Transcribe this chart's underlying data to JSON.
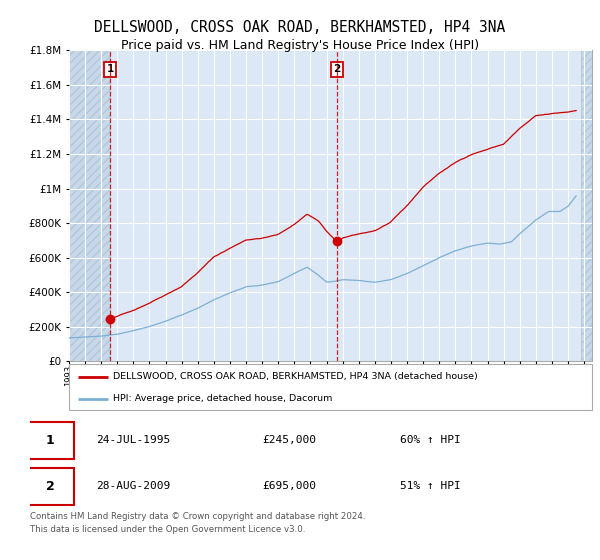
{
  "title": "DELLSWOOD, CROSS OAK ROAD, BERKHAMSTED, HP4 3NA",
  "subtitle": "Price paid vs. HM Land Registry's House Price Index (HPI)",
  "legend_label_red": "DELLSWOOD, CROSS OAK ROAD, BERKHAMSTED, HP4 3NA (detached house)",
  "legend_label_blue": "HPI: Average price, detached house, Dacorum",
  "sale1_date": "24-JUL-1995",
  "sale1_price": "£245,000",
  "sale1_hpi": "60% ↑ HPI",
  "sale1_x": 1995.56,
  "sale1_y": 245000,
  "sale2_date": "28-AUG-2009",
  "sale2_price": "£695,000",
  "sale2_hpi": "51% ↑ HPI",
  "sale2_x": 2009.66,
  "sale2_y": 695000,
  "footer": "Contains HM Land Registry data © Crown copyright and database right 2024.\nThis data is licensed under the Open Government Licence v3.0.",
  "ylim": [
    0,
    1800000
  ],
  "xlim": [
    1993.0,
    2025.5
  ],
  "red_color": "#cc0000",
  "blue_color": "#7db0d4",
  "plot_bg_color": "#dce8f5",
  "hatch_bg_color": "#c8d8e8",
  "background_color": "#ffffff",
  "grid_color": "#ffffff",
  "title_fontsize": 10.5,
  "subtitle_fontsize": 9
}
